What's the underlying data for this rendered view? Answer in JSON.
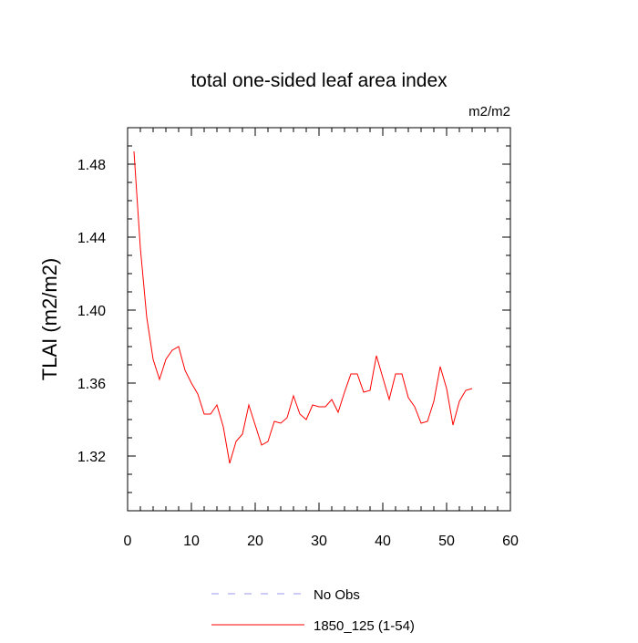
{
  "chart_data": {
    "type": "line",
    "title": "total one-sided leaf area index",
    "units_label": "m2/m2",
    "ylabel": "TLAI  (m2/m2)",
    "xlabel": "",
    "xlim": [
      0,
      60
    ],
    "ylim": [
      1.29,
      1.5
    ],
    "x_ticks": [
      0,
      10,
      20,
      30,
      40,
      50,
      60
    ],
    "y_ticks": [
      1.32,
      1.36,
      1.4,
      1.44,
      1.48
    ],
    "x_tick_labels": [
      "0",
      "10",
      "20",
      "30",
      "40",
      "50",
      "60"
    ],
    "y_tick_labels": [
      "1.32",
      "1.36",
      "1.40",
      "1.44",
      "1.48"
    ],
    "grid": false,
    "legend_position": "bottom-center",
    "series": [
      {
        "name": "No Obs",
        "color": "#9a9aee",
        "dash": true,
        "x": [],
        "values": []
      },
      {
        "name": "1850_125 (1-54)",
        "color": "#ff0000",
        "dash": false,
        "x": [
          1,
          2,
          3,
          4,
          5,
          6,
          7,
          8,
          9,
          10,
          11,
          12,
          13,
          14,
          15,
          16,
          17,
          18,
          19,
          20,
          21,
          22,
          23,
          24,
          25,
          26,
          27,
          28,
          29,
          30,
          31,
          32,
          33,
          34,
          35,
          36,
          37,
          38,
          39,
          40,
          41,
          42,
          43,
          44,
          45,
          46,
          47,
          48,
          49,
          50,
          51,
          52,
          53,
          54
        ],
        "values": [
          1.487,
          1.434,
          1.396,
          1.373,
          1.362,
          1.373,
          1.378,
          1.38,
          1.367,
          1.36,
          1.354,
          1.343,
          1.343,
          1.348,
          1.336,
          1.316,
          1.328,
          1.332,
          1.348,
          1.337,
          1.326,
          1.328,
          1.339,
          1.338,
          1.341,
          1.353,
          1.343,
          1.34,
          1.348,
          1.347,
          1.347,
          1.351,
          1.344,
          1.355,
          1.365,
          1.365,
          1.355,
          1.356,
          1.375,
          1.363,
          1.351,
          1.365,
          1.365,
          1.352,
          1.347,
          1.338,
          1.339,
          1.35,
          1.369,
          1.357,
          1.337,
          1.35,
          1.356,
          1.357
        ]
      }
    ]
  }
}
